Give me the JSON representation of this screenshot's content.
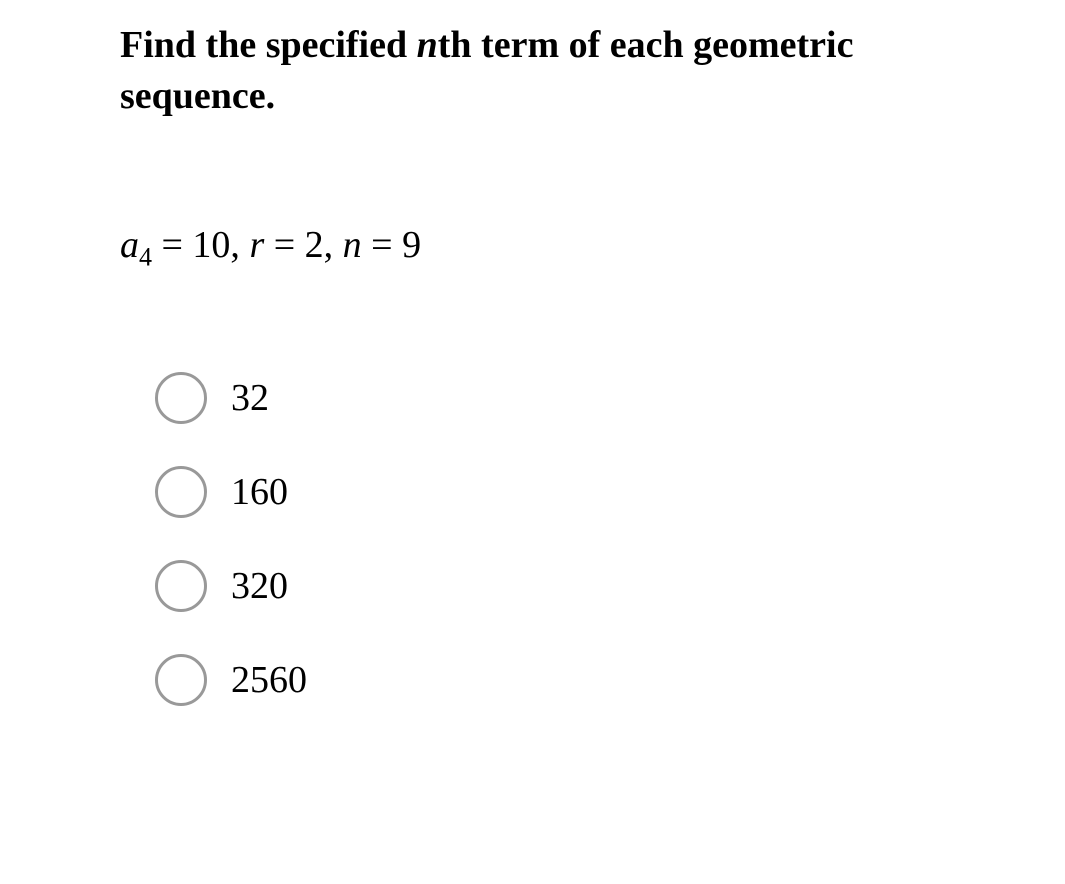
{
  "question": {
    "prompt_part1": "Find the specified ",
    "prompt_italic": "n",
    "prompt_part2": "th term of each geometric sequence."
  },
  "given": {
    "a_var": "a",
    "a_sub": "4",
    "a_eq": " = 10, ",
    "r_var": "r",
    "r_eq": " = 2, ",
    "n_var": "n",
    "n_eq": " = 9"
  },
  "options": [
    {
      "label": "32"
    },
    {
      "label": "160"
    },
    {
      "label": "320"
    },
    {
      "label": "2560"
    }
  ],
  "colors": {
    "background": "#ffffff",
    "text": "#000000",
    "radio_border": "#999999"
  },
  "typography": {
    "prompt_fontsize": 38,
    "option_fontsize": 38,
    "font_family": "Times New Roman"
  }
}
